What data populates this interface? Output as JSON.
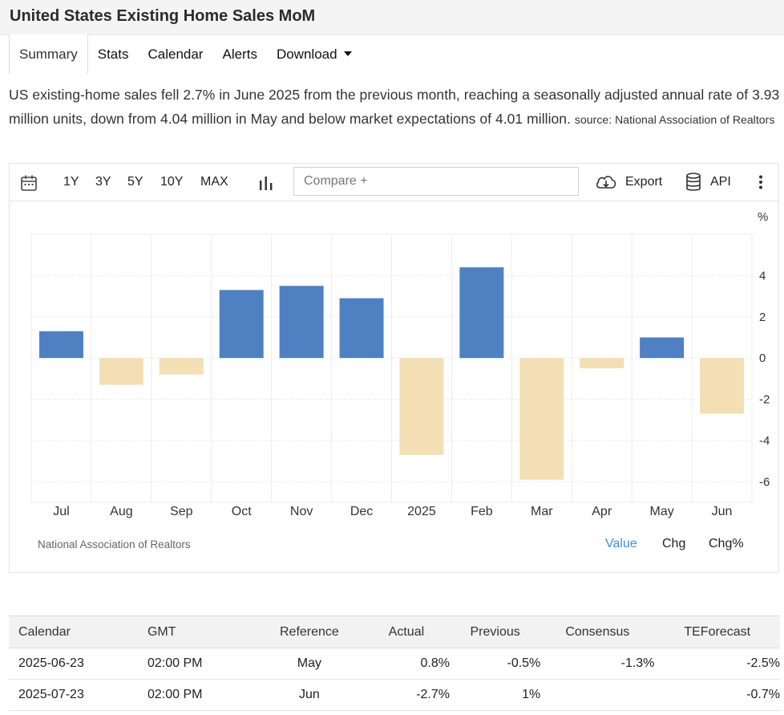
{
  "page": {
    "title": "United States Existing Home Sales MoM",
    "tabs": [
      {
        "label": "Summary",
        "active": true
      },
      {
        "label": "Stats"
      },
      {
        "label": "Calendar"
      },
      {
        "label": "Alerts"
      },
      {
        "label": "Download"
      }
    ],
    "summary_text": "US existing-home sales fell 2.7% in June 2025 from the previous month, reaching a seasonally adjusted annual rate of 3.93 million units, down from 4.04 million in May and below market expectations of 4.01 million.",
    "summary_source": "source: National Association of Realtors"
  },
  "toolbar": {
    "ranges": [
      "1Y",
      "3Y",
      "5Y",
      "10Y",
      "MAX"
    ],
    "compare_placeholder": "Compare +",
    "export_label": "Export",
    "api_label": "API"
  },
  "chart_footer": {
    "source": "National Association of Realtors",
    "views": [
      {
        "label": "Value",
        "selected": true
      },
      {
        "label": "Chg"
      },
      {
        "label": "Chg%"
      }
    ]
  },
  "chart_data": {
    "type": "bar",
    "categories": [
      "Jul",
      "Aug",
      "Sep",
      "Oct",
      "Nov",
      "Dec",
      "2025",
      "Feb",
      "Mar",
      "Apr",
      "May",
      "Jun"
    ],
    "values": [
      1.3,
      -1.3,
      -0.8,
      3.3,
      3.5,
      2.9,
      -4.7,
      4.4,
      -5.9,
      -0.5,
      1.0,
      -2.7
    ],
    "ylabel": "%",
    "ylim": [
      -7,
      6
    ],
    "yticks": [
      4,
      2,
      0,
      -2,
      -4,
      -6
    ],
    "colors": {
      "positive": "#4f81c2",
      "negative": "#f4dfb5"
    },
    "grid": true
  },
  "calendar": {
    "headers": [
      "Calendar",
      "GMT",
      "Reference",
      "Actual",
      "Previous",
      "Consensus",
      "TEForecast"
    ],
    "rows": [
      [
        "2025-06-23",
        "02:00 PM",
        "May",
        "0.8%",
        "-0.5%",
        "-1.3%",
        "-2.5%"
      ],
      [
        "2025-07-23",
        "02:00 PM",
        "Jun",
        "-2.7%",
        "1%",
        "",
        "-0.7%"
      ]
    ]
  }
}
